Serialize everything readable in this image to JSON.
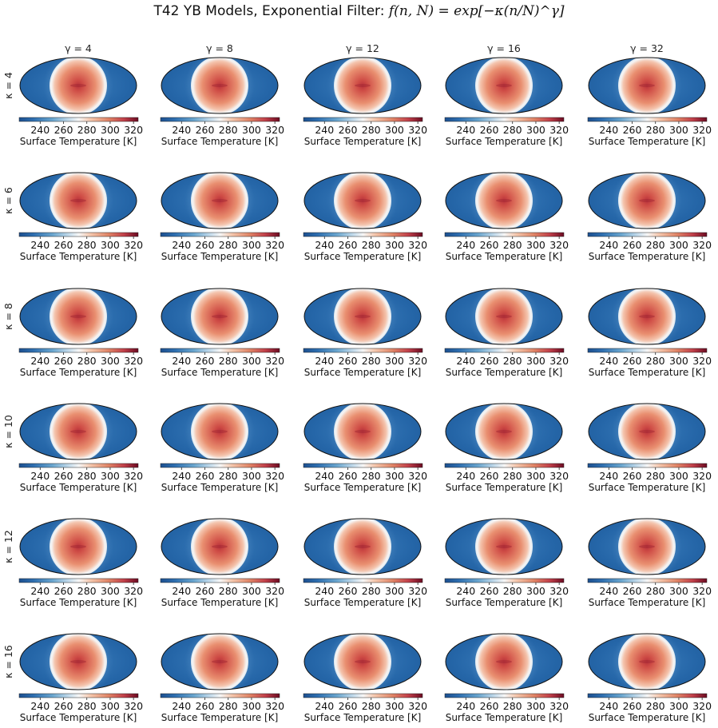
{
  "figure": {
    "title_prefix": "T42 YB Models, Exponential Filter: ",
    "title_formula": "f(n, N) = exp[−κ(n/N)^γ]"
  },
  "chart_data": {
    "type": "heatmap",
    "projection": "mollweide",
    "field": "Surface Temperature",
    "colorbar": {
      "label": "Surface Temperature [K]",
      "ticks": [
        240,
        260,
        280,
        300,
        320
      ],
      "range": [
        222,
        324
      ],
      "colormap": "RdBu_r"
    },
    "columns": [
      "γ = 4",
      "γ = 8",
      "γ = 12",
      "γ = 16",
      "γ = 32"
    ],
    "rows": [
      "κ = 4",
      "κ = 6",
      "κ = 8",
      "κ = 10",
      "κ = 12",
      "κ = 16"
    ],
    "panel_value_ranges_K": {
      "night_side_min": 225,
      "substellar_max": 300
    }
  },
  "colors": {
    "cold": "#2566a8",
    "cold_deep": "#1f5a99",
    "terminator": "#f5f5f5",
    "warm": "#e98f70",
    "hot": "#cf4d46",
    "hot_center": "#b8323b"
  }
}
